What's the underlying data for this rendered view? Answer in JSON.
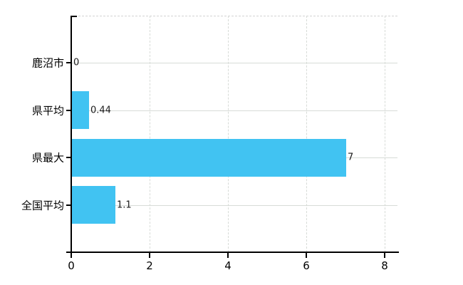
{
  "chart_data": {
    "type": "bar",
    "orientation": "horizontal",
    "categories": [
      "鹿沼市",
      "県平均",
      "県最大",
      "全国平均"
    ],
    "values": [
      0,
      0.44,
      7,
      1.1
    ],
    "value_labels": [
      "0",
      "0.44",
      "7",
      "1.1"
    ],
    "x_ticks": [
      0,
      2,
      4,
      6,
      8
    ],
    "x_tick_labels": [
      "0",
      "2",
      "4",
      "6",
      "8"
    ],
    "xlim": [
      0,
      8.33
    ],
    "grid": true,
    "legend": false,
    "bar_color": "#41c3f2",
    "grid_color": "#d7dbd7",
    "axis_color": "#000000",
    "background_color": "#ffffff",
    "text_color": "#000000"
  }
}
